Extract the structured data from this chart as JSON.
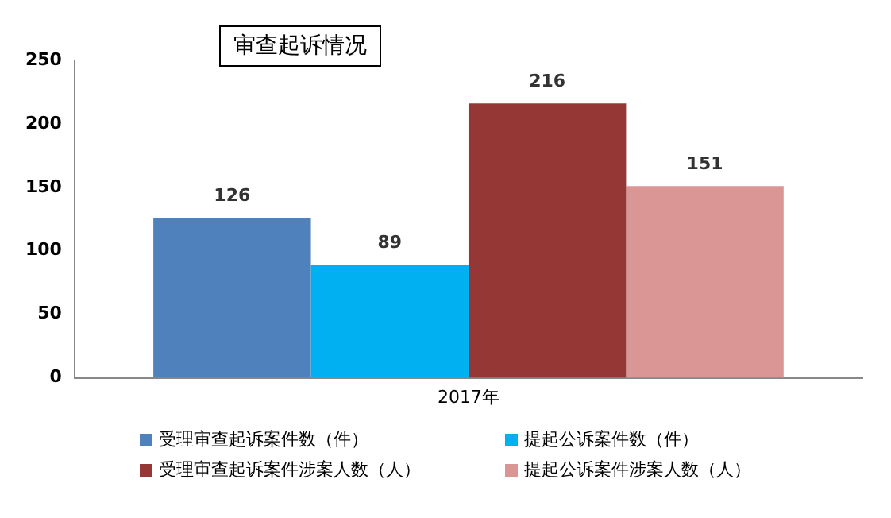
{
  "chart_data": {
    "type": "bar",
    "title": "审查起诉情况",
    "categories": [
      "2017年"
    ],
    "series": [
      {
        "name": "受理审查起诉案件数（件）",
        "color": "#4f81bd",
        "values": [
          126
        ]
      },
      {
        "name": "提起公诉案件数（件）",
        "color": "#00b0f0",
        "values": [
          89
        ]
      },
      {
        "name": "受理审查起诉案件涉案人数（人）",
        "color": "#953735",
        "values": [
          216
        ]
      },
      {
        "name": "提起公诉案件涉案人数（人）",
        "color": "#d99694",
        "values": [
          151
        ]
      }
    ],
    "ylim": [
      0,
      250
    ],
    "yticks": [
      0,
      50,
      100,
      150,
      200,
      250
    ],
    "grid": false,
    "legend": "bottom",
    "data_labels": true
  }
}
